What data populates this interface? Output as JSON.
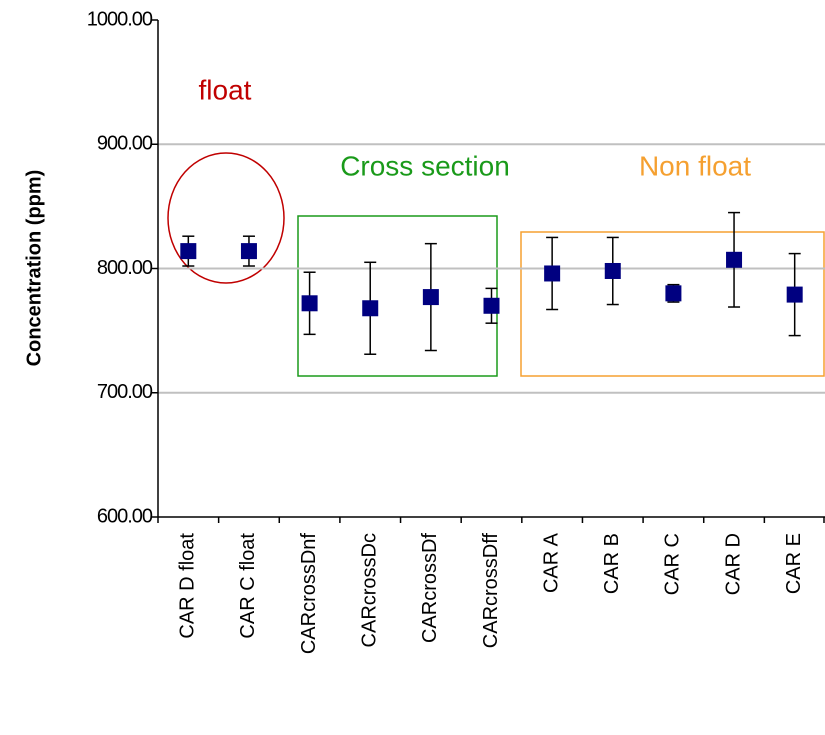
{
  "chart_data": {
    "type": "errorbar",
    "y_label": "Concentration (ppm)",
    "categories": [
      "CAR D float",
      "CAR C float",
      "CARcrossDnf",
      "CARcrossDc",
      "CARcrossDf",
      "CARcrossDff",
      "CAR A",
      "CAR B",
      "CAR C",
      "CAR D",
      "CAR E"
    ],
    "values": [
      814,
      814,
      772,
      768,
      777,
      770,
      796,
      798,
      780,
      807,
      779
    ],
    "errors": [
      12,
      12,
      25,
      37,
      43,
      14,
      29,
      27,
      7,
      38,
      33
    ],
    "color": "#000080",
    "ylim": [
      600,
      1000
    ],
    "yticks": [
      {
        "value": 600,
        "label": "600.00"
      },
      {
        "value": 700,
        "label": "700.00"
      },
      {
        "value": 800,
        "label": "800.00"
      },
      {
        "value": 900,
        "label": "900.00"
      },
      {
        "value": 1000,
        "label": "1000.00"
      }
    ],
    "grid": true,
    "annotations": [
      {
        "text": "float",
        "color": "#c00000"
      },
      {
        "text": "Cross section",
        "color": "#1a9a1a"
      },
      {
        "text": "Non float",
        "color": "#f5a030"
      }
    ]
  }
}
